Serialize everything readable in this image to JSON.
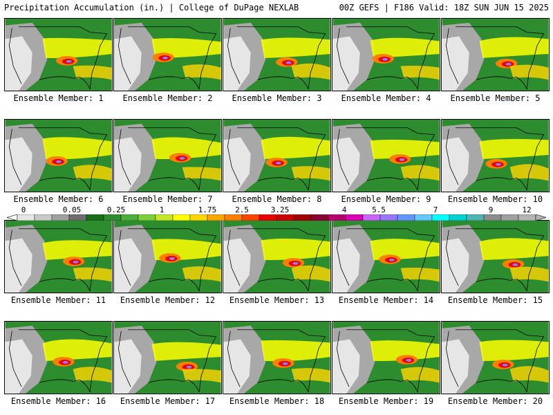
{
  "header": {
    "left": "Precipitation Accumulation (in.) | College of DuPage NEXLAB",
    "right": "00Z GEFS | F186 Valid: 18Z SUN JUN 15 2025"
  },
  "legend": {
    "labels": [
      "0",
      "0.05",
      "0.25",
      "1",
      "1.75",
      "2.5",
      "3.25",
      "4",
      "5.5",
      "7",
      "9",
      "12"
    ],
    "colors": [
      "#e6e6e6",
      "#c8c8c8",
      "#a0a0a0",
      "#6e6e6e",
      "#1a6e1a",
      "#2d8c2d",
      "#4caf3c",
      "#7ccf3c",
      "#c8e628",
      "#ffff00",
      "#ffd700",
      "#ffa500",
      "#ff7f00",
      "#ff4500",
      "#e60000",
      "#c80000",
      "#a00000",
      "#8b0030",
      "#b4006e",
      "#dc00b4",
      "#c864ff",
      "#9678ff",
      "#6496ff",
      "#64c8ff",
      "#00ffff",
      "#00d2d2",
      "#50b4b4",
      "#8c8c8c",
      "#a0a0a0",
      "#b4b4b4"
    ]
  },
  "members": [
    "Ensemble Member: 1",
    "Ensemble Member: 2",
    "Ensemble Member: 3",
    "Ensemble Member: 4",
    "Ensemble Member: 5",
    "Ensemble Member: 6",
    "Ensemble Member: 7",
    "Ensemble Member: 8",
    "Ensemble Member: 9",
    "Ensemble Member: 10",
    "Ensemble Member: 11",
    "Ensemble Member: 12",
    "Ensemble Member: 13",
    "Ensemble Member: 14",
    "Ensemble Member: 15",
    "Ensemble Member: 16",
    "Ensemble Member: 17",
    "Ensemble Member: 18",
    "Ensemble Member: 19",
    "Ensemble Member: 20"
  ]
}
